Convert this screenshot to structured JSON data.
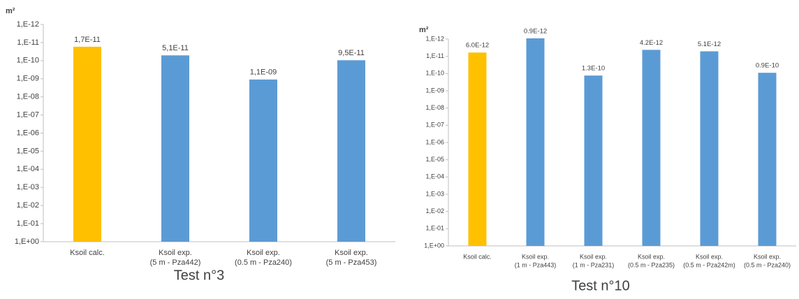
{
  "chart_data": [
    {
      "type": "bar",
      "y_label": "m²",
      "caption": "Test n°3",
      "log": true,
      "categories": [
        [
          "Ksoil calc."
        ],
        [
          "Ksoil exp.",
          "(5 m - Pza442)"
        ],
        [
          "Ksoil  exp.",
          "(0.5 m - Pza240)"
        ],
        [
          "Ksoil  exp.",
          "(5 m - Pza453)"
        ]
      ],
      "values": [
        1.7e-11,
        5.1e-11,
        1.1e-09,
        9.5e-11
      ],
      "value_labels": [
        "1,7E-11",
        "5,1E-11",
        "1,1E-09",
        "9,5E-11"
      ],
      "colors": [
        "#ffc000",
        "#5b9bd5",
        "#5b9bd5",
        "#5b9bd5"
      ],
      "ylim": [
        1,
        1e-12
      ],
      "yticks": [
        {
          "value": 1e-12,
          "label": "1,E-12"
        },
        {
          "value": 1e-11,
          "label": "1,E-11"
        },
        {
          "value": 1e-10,
          "label": "1,E-10"
        },
        {
          "value": 1e-09,
          "label": "1,E-09"
        },
        {
          "value": 1e-08,
          "label": "1,E-08"
        },
        {
          "value": 1e-07,
          "label": "1,E-07"
        },
        {
          "value": 1e-06,
          "label": "1,E-06"
        },
        {
          "value": 1e-05,
          "label": "1,E-05"
        },
        {
          "value": 0.0001,
          "label": "1,E-04"
        },
        {
          "value": 0.001,
          "label": "1,E-03"
        },
        {
          "value": 0.01,
          "label": "1,E-02"
        },
        {
          "value": 0.1,
          "label": "1,E-01"
        },
        {
          "value": 1,
          "label": "1,E+00"
        }
      ]
    },
    {
      "type": "bar",
      "y_label": "m²",
      "caption": "Test n°10",
      "log": true,
      "categories": [
        [
          "Ksoil calc."
        ],
        [
          "Ksoil exp.",
          "(1 m - Pza443)"
        ],
        [
          "Ksoil exp.",
          "(1 m - Pza231)"
        ],
        [
          "Ksoil exp.",
          "(0.5 m - Pza235)"
        ],
        [
          "Ksoil exp.",
          "(0.5 m - Pza242m)"
        ],
        [
          "Ksoil exp.",
          "(0.5 m - Pza240)"
        ]
      ],
      "values": [
        6e-12,
        9e-13,
        1.3e-10,
        4.2e-12,
        5.1e-12,
        9e-11
      ],
      "value_labels": [
        "6.0E-12",
        "0.9E-12",
        "1.3E-10",
        "4.2E-12",
        "5.1E-12",
        "0.9E-10"
      ],
      "colors": [
        "#ffc000",
        "#5b9bd5",
        "#5b9bd5",
        "#5b9bd5",
        "#5b9bd5",
        "#5b9bd5"
      ],
      "ylim": [
        1,
        1e-12
      ],
      "yticks": [
        {
          "value": 1e-12,
          "label": "1,E-12"
        },
        {
          "value": 1e-11,
          "label": "1,E-11"
        },
        {
          "value": 1e-10,
          "label": "1,E-10"
        },
        {
          "value": 1e-09,
          "label": "1,E-09"
        },
        {
          "value": 1e-08,
          "label": "1,E-08"
        },
        {
          "value": 1e-07,
          "label": "1,E-07"
        },
        {
          "value": 1e-06,
          "label": "1,E-06"
        },
        {
          "value": 1e-05,
          "label": "1,E-05"
        },
        {
          "value": 0.0001,
          "label": "1,E-04"
        },
        {
          "value": 0.001,
          "label": "1,E-03"
        },
        {
          "value": 0.01,
          "label": "1,E-02"
        },
        {
          "value": 0.1,
          "label": "1,E-01"
        },
        {
          "value": 1,
          "label": "1,E+00"
        }
      ]
    }
  ]
}
